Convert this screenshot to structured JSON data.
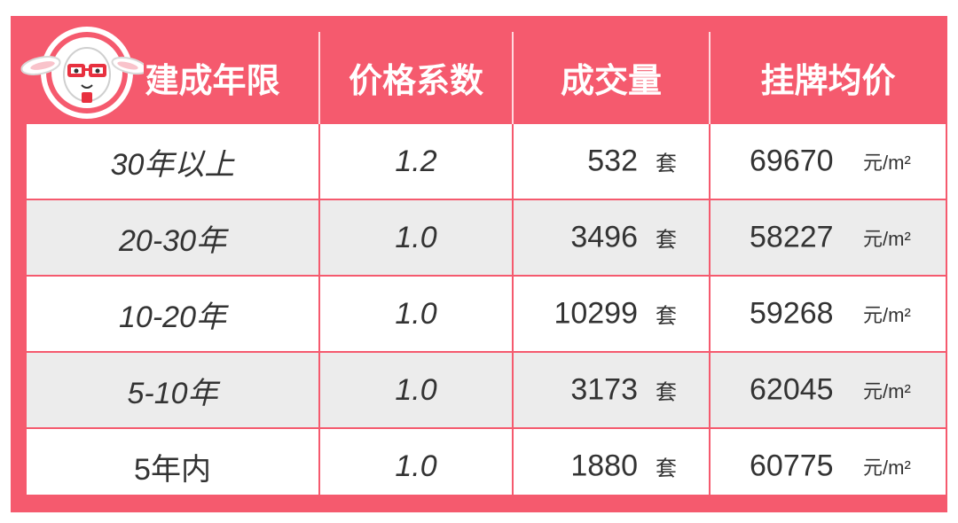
{
  "chart_data": {
    "type": "table",
    "columns": [
      "建成年限",
      "价格系数",
      "成交量",
      "挂牌均价"
    ],
    "rows": [
      {
        "age": "30年以上",
        "coef": "1.2",
        "volume": "532",
        "volume_unit": "套",
        "price": "69670",
        "price_unit": "元/m²"
      },
      {
        "age": "20-30年",
        "coef": "1.0",
        "volume": "3496",
        "volume_unit": "套",
        "price": "58227",
        "price_unit": "元/m²"
      },
      {
        "age": "10-20年",
        "coef": "1.0",
        "volume": "10299",
        "volume_unit": "套",
        "price": "59268",
        "price_unit": "元/m²"
      },
      {
        "age": "5-10年",
        "coef": "1.0",
        "volume": "3173",
        "volume_unit": "套",
        "price": "62045",
        "price_unit": "元/m²"
      },
      {
        "age": "5年内",
        "coef": "1.0",
        "volume": "1880",
        "volume_unit": "套",
        "price": "60775",
        "price_unit": "元/m²"
      }
    ]
  },
  "colors": {
    "accent": "#f55a6e",
    "row_alt": "#ececec",
    "text": "#333333",
    "header_text": "#ffffff"
  },
  "icons": {
    "mascot": "rabbit-mascot-with-glasses"
  }
}
